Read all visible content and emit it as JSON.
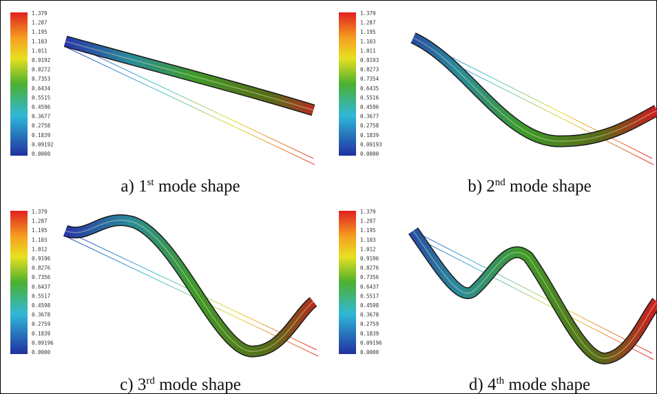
{
  "panels": [
    {
      "caption": {
        "prefix": "a) 1",
        "sup": "st",
        "suffix": " mode shape"
      },
      "legend": [
        "1.379",
        "1.287",
        "1.195",
        "1.103",
        "1.011",
        "0.9192",
        "0.8272",
        "0.7353",
        "0.6434",
        "0.5515",
        "0.4596",
        "0.3677",
        "0.2758",
        "0.1839",
        "0.09192",
        "0.0000"
      ]
    },
    {
      "caption": {
        "prefix": "b) 2",
        "sup": "nd",
        "suffix": " mode shape"
      },
      "legend": [
        "1.379",
        "1.287",
        "1.195",
        "1.103",
        "1.011",
        "0.9193",
        "0.8273",
        "0.7354",
        "0.6435",
        "0.5516",
        "0.4596",
        "0.3677",
        "0.2758",
        "0.1839",
        "0.09193",
        "0.0000"
      ]
    },
    {
      "caption": {
        "prefix": "c) 3",
        "sup": "rd",
        "suffix": " mode shape"
      },
      "legend": [
        "1.379",
        "1.287",
        "1.195",
        "1.103",
        "1.012",
        "0.9196",
        "0.8276",
        "0.7356",
        "0.6437",
        "0.5517",
        "0.4598",
        "0.3678",
        "0.2759",
        "0.1839",
        "0.09196",
        "0.0000"
      ]
    },
    {
      "caption": {
        "prefix": "d) 4",
        "sup": "th",
        "suffix": " mode shape"
      },
      "legend": [
        "1.379",
        "1.287",
        "1.195",
        "1.103",
        "1.012",
        "0.9196",
        "0.8276",
        "0.7356",
        "0.6437",
        "0.5517",
        "0.4598",
        "0.3678",
        "0.2759",
        "0.1839",
        "0.09196",
        "0.0000"
      ]
    }
  ]
}
